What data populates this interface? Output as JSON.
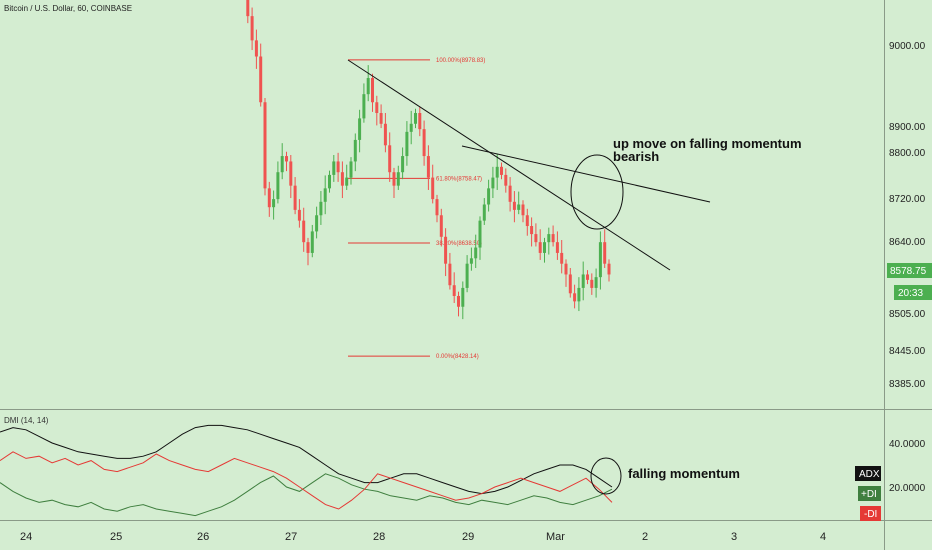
{
  "header": {
    "symbol_title": "Bitcoin / U.S. Dollar, 60, COINBASE"
  },
  "indicator": {
    "label": "DMI (14, 14)"
  },
  "price_axis": {
    "ticks": [
      "9000.00",
      "8900.00",
      "8800.00",
      "8720.00",
      "8640.00",
      "8505.00",
      "8445.00",
      "8385.00"
    ],
    "current_price": "8578.75",
    "countdown": "20:33"
  },
  "dmi_axis": {
    "ticks": [
      "40.0000",
      "20.0000"
    ]
  },
  "time_axis": {
    "ticks": [
      "24",
      "25",
      "26",
      "27",
      "28",
      "29",
      "Mar",
      "2",
      "3",
      "4"
    ]
  },
  "fib_levels": [
    {
      "label": "100.00%(8978.83)"
    },
    {
      "label": "61.80%(8758.47)"
    },
    {
      "label": "38.20%(8638.50)"
    },
    {
      "label": "0.00%(8428.14)"
    }
  ],
  "annotations": {
    "price_note_line1": "up move on falling momentum",
    "price_note_line2": "bearish",
    "dmi_note": "falling momentum"
  },
  "legend": {
    "adx": "ADX",
    "plus_di": "+DI",
    "minus_di": "-DI"
  },
  "colors": {
    "background": "#d4edd1",
    "up_candle": "#4caf50",
    "down_candle": "#ef5350",
    "adx": "#111111",
    "plus_di": "#3f7f3f",
    "minus_di": "#e53935",
    "current_price_badge": "#4caf50"
  },
  "chart_data": [
    {
      "type": "candlestick",
      "title": "Bitcoin / U.S. Dollar, 60, COINBASE",
      "ylim": [
        8330,
        9090
      ],
      "x_ticks": [
        "24",
        "25",
        "26",
        "27",
        "28",
        "29",
        "Mar",
        "2",
        "3",
        "4"
      ],
      "last_price": 8578.75,
      "candles_close": [
        9120,
        9060,
        9015,
        8985,
        8900,
        8740,
        8705,
        8720,
        8770,
        8800,
        8790,
        8745,
        8700,
        8680,
        8640,
        8620,
        8660,
        8690,
        8715,
        8740,
        8765,
        8790,
        8770,
        8745,
        8760,
        8790,
        8830,
        8870,
        8915,
        8945,
        8900,
        8880,
        8860,
        8820,
        8770,
        8745,
        8770,
        8800,
        8845,
        8860,
        8880,
        8850,
        8800,
        8760,
        8720,
        8690,
        8650,
        8600,
        8560,
        8540,
        8520,
        8555,
        8600,
        8610,
        8630,
        8680,
        8710,
        8740,
        8760,
        8780,
        8765,
        8745,
        8715,
        8700,
        8710,
        8690,
        8670,
        8655,
        8640,
        8620,
        8640,
        8655,
        8640,
        8620,
        8600,
        8580,
        8545,
        8530,
        8555,
        8580,
        8570,
        8555,
        8575,
        8640,
        8600,
        8580
      ],
      "fibonacci": [
        {
          "level": "100.00%",
          "price": 8978.83
        },
        {
          "level": "61.80%",
          "price": 8758.47
        },
        {
          "level": "38.20%",
          "price": 8638.5
        },
        {
          "level": "0.00%",
          "price": 8428.14
        }
      ],
      "annotations": [
        "up move on falling momentum",
        "bearish"
      ]
    },
    {
      "type": "line",
      "title": "DMI (14, 14)",
      "ylim": [
        5,
        55
      ],
      "y_ticks": [
        40,
        20
      ],
      "series": [
        {
          "name": "ADX",
          "values": [
            45,
            47,
            46,
            43,
            40,
            38,
            36,
            35,
            34,
            33,
            33,
            34,
            36,
            40,
            44,
            47,
            48,
            48,
            47,
            46,
            44,
            42,
            40,
            38,
            34,
            30,
            26,
            24,
            22,
            22,
            24,
            26,
            26,
            24,
            22,
            20,
            18,
            17,
            18,
            20,
            23,
            26,
            28,
            30,
            30,
            28,
            24,
            20
          ]
        },
        {
          "name": "+DI",
          "values": [
            22,
            18,
            15,
            13,
            14,
            12,
            11,
            13,
            10,
            9,
            11,
            12,
            10,
            9,
            8,
            7,
            9,
            11,
            14,
            18,
            22,
            25,
            20,
            18,
            22,
            26,
            24,
            21,
            19,
            18,
            16,
            15,
            14,
            16,
            15,
            13,
            12,
            14,
            13,
            12,
            14,
            16,
            15,
            13,
            12,
            14,
            16,
            19
          ]
        },
        {
          "name": "-DI",
          "values": [
            32,
            36,
            33,
            34,
            31,
            33,
            30,
            32,
            28,
            27,
            29,
            31,
            35,
            32,
            30,
            28,
            27,
            30,
            33,
            31,
            29,
            27,
            24,
            20,
            16,
            12,
            10,
            14,
            19,
            26,
            24,
            22,
            20,
            18,
            16,
            14,
            15,
            17,
            20,
            22,
            24,
            22,
            20,
            18,
            21,
            24,
            19,
            13
          ]
        }
      ]
    }
  ]
}
